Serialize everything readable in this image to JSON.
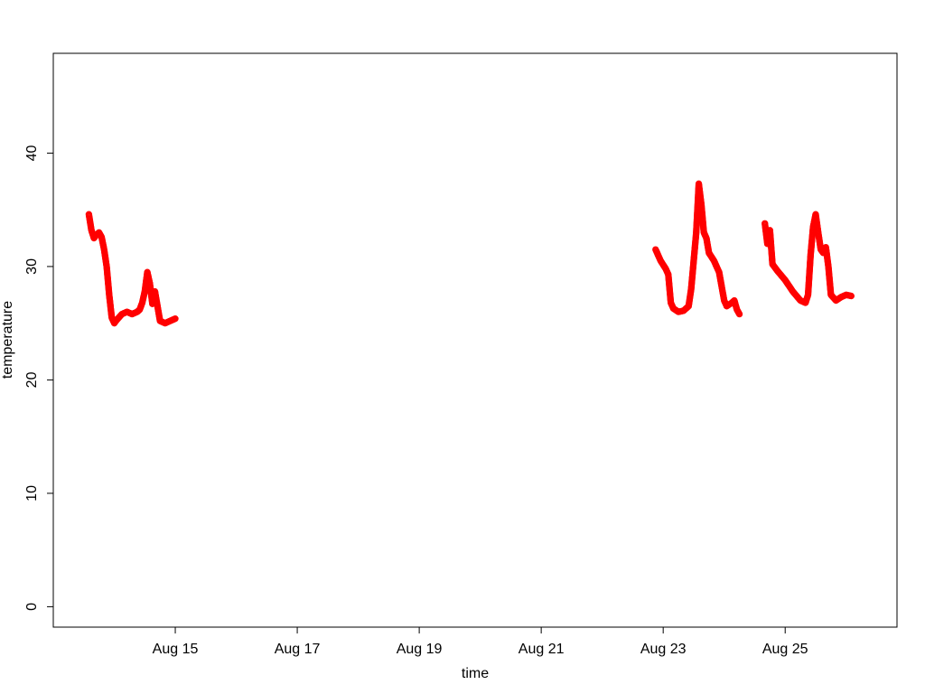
{
  "chart_data": {
    "type": "scatter",
    "xlabel": "time",
    "ylabel": "temperature",
    "title": "",
    "x_ticks": [
      "Aug 15",
      "Aug 17",
      "Aug 19",
      "Aug 21",
      "Aug 23",
      "Aug 25"
    ],
    "y_ticks": [
      0,
      10,
      20,
      30,
      40
    ],
    "xlim": [
      "2023-08-13T00:00",
      "2023-08-26T20:00"
    ],
    "ylim": [
      -1.8,
      48.8
    ],
    "grid": false,
    "legend": "none",
    "marker_color": "#ff0000",
    "series": [
      {
        "values": [
          [
            "2023-08-13T14:00",
            34.6
          ],
          [
            "2023-08-13T15:00",
            33.2
          ],
          [
            "2023-08-13T16:00",
            32.5
          ],
          [
            "2023-08-13T17:00",
            32.8
          ],
          [
            "2023-08-13T18:00",
            33.0
          ],
          [
            "2023-08-13T19:00",
            32.6
          ],
          [
            "2023-08-13T20:00",
            31.5
          ],
          [
            "2023-08-13T21:00",
            30.0
          ],
          [
            "2023-08-13T22:00",
            27.5
          ],
          [
            "2023-08-13T23:00",
            25.5
          ],
          [
            "2023-08-14T00:00",
            25.0
          ],
          [
            "2023-08-14T01:00",
            25.3
          ],
          [
            "2023-08-14T03:00",
            25.8
          ],
          [
            "2023-08-14T05:00",
            26.0
          ],
          [
            "2023-08-14T07:00",
            25.8
          ],
          [
            "2023-08-14T09:00",
            26.0
          ],
          [
            "2023-08-14T10:00",
            26.2
          ],
          [
            "2023-08-14T11:00",
            26.8
          ],
          [
            "2023-08-14T12:00",
            27.8
          ],
          [
            "2023-08-14T13:00",
            29.5
          ],
          [
            "2023-08-14T14:00",
            28.5
          ],
          [
            "2023-08-14T15:00",
            26.7
          ],
          [
            "2023-08-14T16:00",
            27.8
          ],
          [
            "2023-08-14T17:00",
            26.5
          ],
          [
            "2023-08-14T18:00",
            25.2
          ],
          [
            "2023-08-14T20:00",
            25.0
          ],
          [
            "2023-08-14T22:00",
            25.2
          ],
          [
            "2023-08-15T00:00",
            25.4
          ]
        ]
      },
      {
        "values": [
          [
            "2023-08-22T21:00",
            31.5
          ],
          [
            "2023-08-22T23:00",
            30.5
          ],
          [
            "2023-08-23T01:00",
            29.8
          ],
          [
            "2023-08-23T02:00",
            29.3
          ],
          [
            "2023-08-23T03:00",
            26.8
          ],
          [
            "2023-08-23T04:00",
            26.3
          ],
          [
            "2023-08-23T06:00",
            26.0
          ],
          [
            "2023-08-23T08:00",
            26.1
          ],
          [
            "2023-08-23T10:00",
            26.5
          ],
          [
            "2023-08-23T11:00",
            28.0
          ],
          [
            "2023-08-23T12:00",
            30.5
          ],
          [
            "2023-08-23T13:00",
            33.0
          ],
          [
            "2023-08-23T14:00",
            37.3
          ],
          [
            "2023-08-23T15:00",
            35.5
          ],
          [
            "2023-08-23T16:00",
            33.0
          ],
          [
            "2023-08-23T17:00",
            32.5
          ],
          [
            "2023-08-23T18:00",
            31.2
          ],
          [
            "2023-08-23T20:00",
            30.5
          ],
          [
            "2023-08-23T22:00",
            29.5
          ],
          [
            "2023-08-24T00:00",
            27.0
          ],
          [
            "2023-08-24T01:00",
            26.5
          ],
          [
            "2023-08-24T03:00",
            26.8
          ],
          [
            "2023-08-24T04:00",
            27.0
          ],
          [
            "2023-08-24T05:00",
            26.2
          ],
          [
            "2023-08-24T06:00",
            25.8
          ]
        ]
      },
      {
        "values": [
          [
            "2023-08-24T16:00",
            33.8
          ],
          [
            "2023-08-24T17:00",
            32.0
          ],
          [
            "2023-08-24T18:00",
            33.2
          ],
          [
            "2023-08-24T19:00",
            30.2
          ],
          [
            "2023-08-24T21:00",
            29.6
          ],
          [
            "2023-08-25T00:00",
            28.8
          ],
          [
            "2023-08-25T03:00",
            27.8
          ],
          [
            "2023-08-25T06:00",
            27.0
          ],
          [
            "2023-08-25T08:00",
            26.8
          ],
          [
            "2023-08-25T09:00",
            27.5
          ],
          [
            "2023-08-25T10:00",
            31.0
          ],
          [
            "2023-08-25T11:00",
            33.5
          ],
          [
            "2023-08-25T12:00",
            34.6
          ],
          [
            "2023-08-25T13:00",
            33.0
          ],
          [
            "2023-08-25T14:00",
            31.5
          ],
          [
            "2023-08-25T15:00",
            31.2
          ],
          [
            "2023-08-25T16:00",
            31.7
          ],
          [
            "2023-08-25T17:00",
            30.0
          ],
          [
            "2023-08-25T18:00",
            27.5
          ],
          [
            "2023-08-25T20:00",
            27.0
          ],
          [
            "2023-08-25T22:00",
            27.3
          ],
          [
            "2023-08-26T00:00",
            27.5
          ],
          [
            "2023-08-26T02:00",
            27.4
          ]
        ]
      }
    ]
  }
}
